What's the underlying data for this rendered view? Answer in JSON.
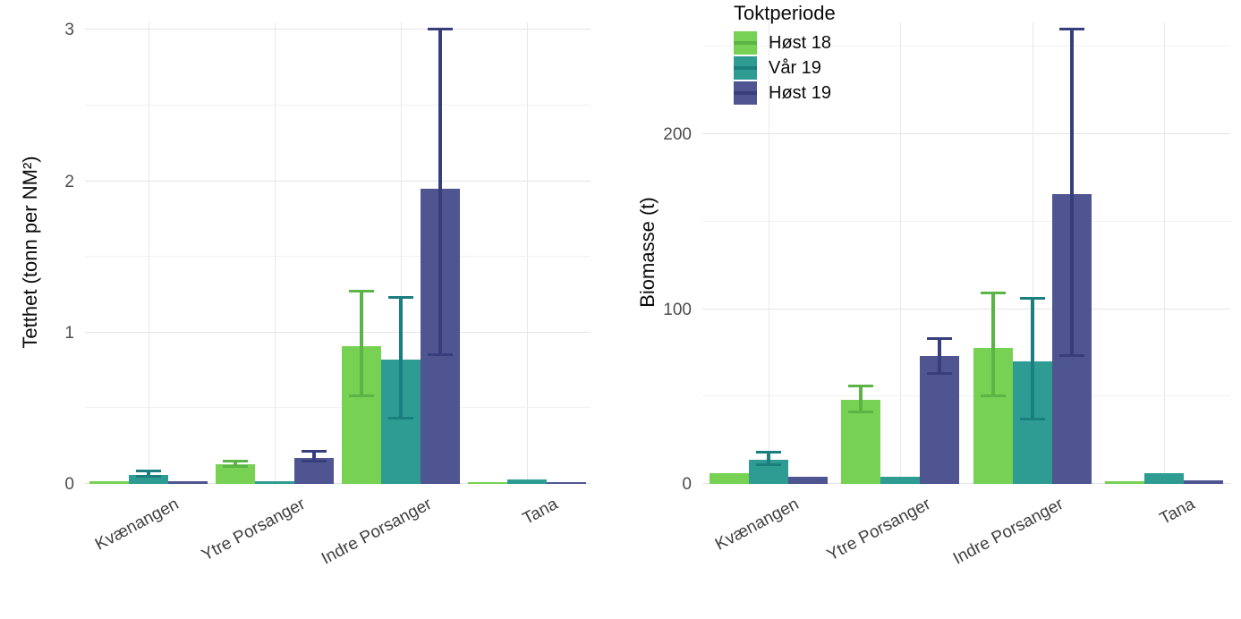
{
  "legend": {
    "title": "Toktperiode",
    "entries": [
      {
        "label": "Høst 18",
        "color": "#77d153",
        "line_color": "#5cb447"
      },
      {
        "label": "Vår 19",
        "color": "#2e9c93",
        "line_color": "#1b7f7f"
      },
      {
        "label": "Høst 19",
        "color": "#4f5591",
        "line_color": "#373e7c"
      }
    ]
  },
  "chart_data": [
    {
      "type": "bar",
      "title": "",
      "ylabel": "Tetthet (tonn per NM²)",
      "xlabel": "",
      "categories": [
        "Kvænangen",
        "Ytre Porsanger",
        "Indre Porsanger",
        "Tana"
      ],
      "series": [
        {
          "name": "Høst 18",
          "color": "#77d153",
          "error_color": "#5cb447",
          "values": [
            0.02,
            0.13,
            0.91,
            0.01
          ],
          "errors": [
            null,
            [
              0.11,
              0.15
            ],
            [
              0.58,
              1.27
            ],
            null
          ]
        },
        {
          "name": "Vår 19",
          "color": "#2e9c93",
          "error_color": "#1b7f7f",
          "values": [
            0.06,
            0.02,
            0.82,
            0.03
          ],
          "errors": [
            [
              0.05,
              0.08
            ],
            null,
            [
              0.43,
              1.23
            ],
            null
          ]
        },
        {
          "name": "Høst 19",
          "color": "#4f5591",
          "error_color": "#373e7c",
          "values": [
            0.015,
            0.17,
            1.95,
            0.01
          ],
          "errors": [
            null,
            [
              0.15,
              0.21
            ],
            [
              0.85,
              3.0
            ],
            null
          ]
        }
      ],
      "yticks": [
        0,
        1,
        2,
        3
      ],
      "yminor": [
        0.5,
        1.5,
        2.5
      ],
      "ylim": [
        0,
        3.05
      ],
      "grid": true,
      "legend_position": "none"
    },
    {
      "type": "bar",
      "title": "",
      "ylabel": "Biomasse (t)",
      "xlabel": "",
      "categories": [
        "Kvænangen",
        "Ytre Porsanger",
        "Indre Porsanger",
        "Tana"
      ],
      "series": [
        {
          "name": "Høst 18",
          "color": "#77d153",
          "error_color": "#5cb447",
          "values": [
            6,
            48,
            78,
            1.5
          ],
          "errors": [
            null,
            [
              41,
              56
            ],
            [
              50,
              109
            ],
            null
          ]
        },
        {
          "name": "Vår 19",
          "color": "#2e9c93",
          "error_color": "#1b7f7f",
          "values": [
            14,
            4,
            70,
            6
          ],
          "errors": [
            [
              11,
              18
            ],
            null,
            [
              37,
              106
            ],
            null
          ]
        },
        {
          "name": "Høst 19",
          "color": "#4f5591",
          "error_color": "#373e7c",
          "values": [
            4,
            73,
            166,
            2
          ],
          "errors": [
            null,
            [
              63,
              83
            ],
            [
              73,
              260
            ],
            null
          ]
        }
      ],
      "yticks": [
        0,
        100,
        200
      ],
      "yminor": [
        50,
        150,
        250
      ],
      "ylim": [
        0,
        264
      ],
      "grid": true,
      "legend_position": "top-left-inside"
    }
  ]
}
